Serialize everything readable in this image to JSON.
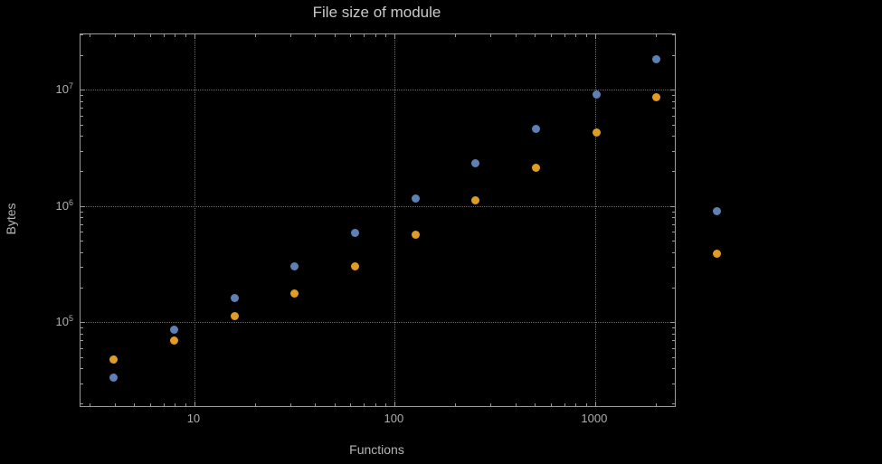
{
  "chart_data": {
    "type": "scatter",
    "title": "File size of module",
    "xlabel": "Functions",
    "ylabel": "Bytes",
    "x_scale": "log",
    "y_scale": "log",
    "grid": "dotted",
    "legend": null,
    "x_range": [
      2.7,
      2500
    ],
    "y_range": [
      19000,
      30000000
    ],
    "x_major_ticks": [
      10,
      100,
      1000
    ],
    "y_major_ticks": [
      100000,
      1000000,
      10000000
    ],
    "colors": {
      "series1": "#5E81B5",
      "series2": "#E19C24",
      "frame": "#9a9a9a",
      "grid": "#6e6e6e"
    },
    "series": [
      {
        "name": "series-1-blue",
        "color": "#5E81B5",
        "points": [
          [
            4,
            33000
          ],
          [
            8,
            85000
          ],
          [
            16,
            160000
          ],
          [
            32,
            300000
          ],
          [
            64,
            580000
          ],
          [
            128,
            1150000
          ],
          [
            256,
            2300000
          ],
          [
            512,
            4500000
          ],
          [
            1024,
            9000000
          ],
          [
            2048,
            18000000
          ],
          [
            4096,
            880000
          ]
        ]
      },
      {
        "name": "series-2-orange",
        "color": "#E19C24",
        "points": [
          [
            4,
            47000
          ],
          [
            8,
            68000
          ],
          [
            16,
            110000
          ],
          [
            32,
            175000
          ],
          [
            64,
            300000
          ],
          [
            128,
            560000
          ],
          [
            256,
            1100000
          ],
          [
            512,
            2100000
          ],
          [
            1024,
            4200000
          ],
          [
            2048,
            8500000
          ],
          [
            4096,
            380000
          ]
        ]
      }
    ]
  }
}
